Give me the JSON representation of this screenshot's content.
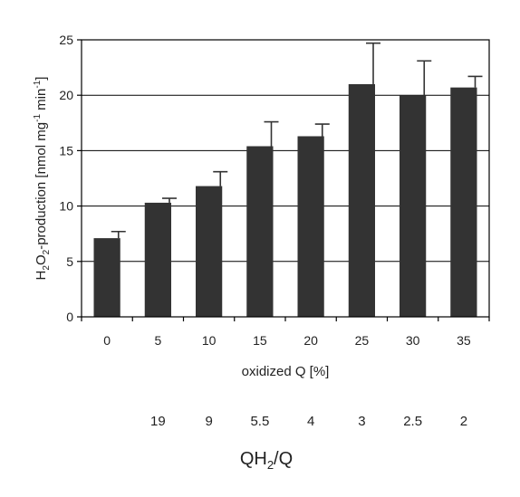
{
  "chart_data": {
    "type": "bar",
    "categories": [
      "0",
      "5",
      "10",
      "15",
      "20",
      "25",
      "30",
      "35"
    ],
    "values": [
      7.1,
      10.3,
      11.8,
      15.4,
      16.3,
      21.0,
      20.0,
      20.7
    ],
    "errors": [
      0.6,
      0.4,
      1.3,
      2.2,
      1.1,
      3.7,
      3.1,
      1.0
    ],
    "xlabel": "oxidized Q [%]",
    "ylabel_parts": {
      "h": "H",
      "sub1": "2",
      "o": "O",
      "sub2": "2",
      "mid": "-production [nmol mg",
      "sup1": "-1",
      "min": " min",
      "sup2": "-1",
      "end": "]"
    },
    "ylim": [
      0,
      25
    ],
    "yticks": [
      0,
      5,
      10,
      15,
      20,
      25
    ],
    "grid": true,
    "secondary_axis": {
      "title_parts": {
        "qh": "QH",
        "sub": "2",
        "rest": "/Q"
      },
      "labels": [
        "",
        "19",
        "9",
        "5.5",
        "4",
        "3",
        "2.5",
        "2"
      ]
    },
    "colors": {
      "bar": "#333333",
      "axis": "#000000"
    }
  }
}
